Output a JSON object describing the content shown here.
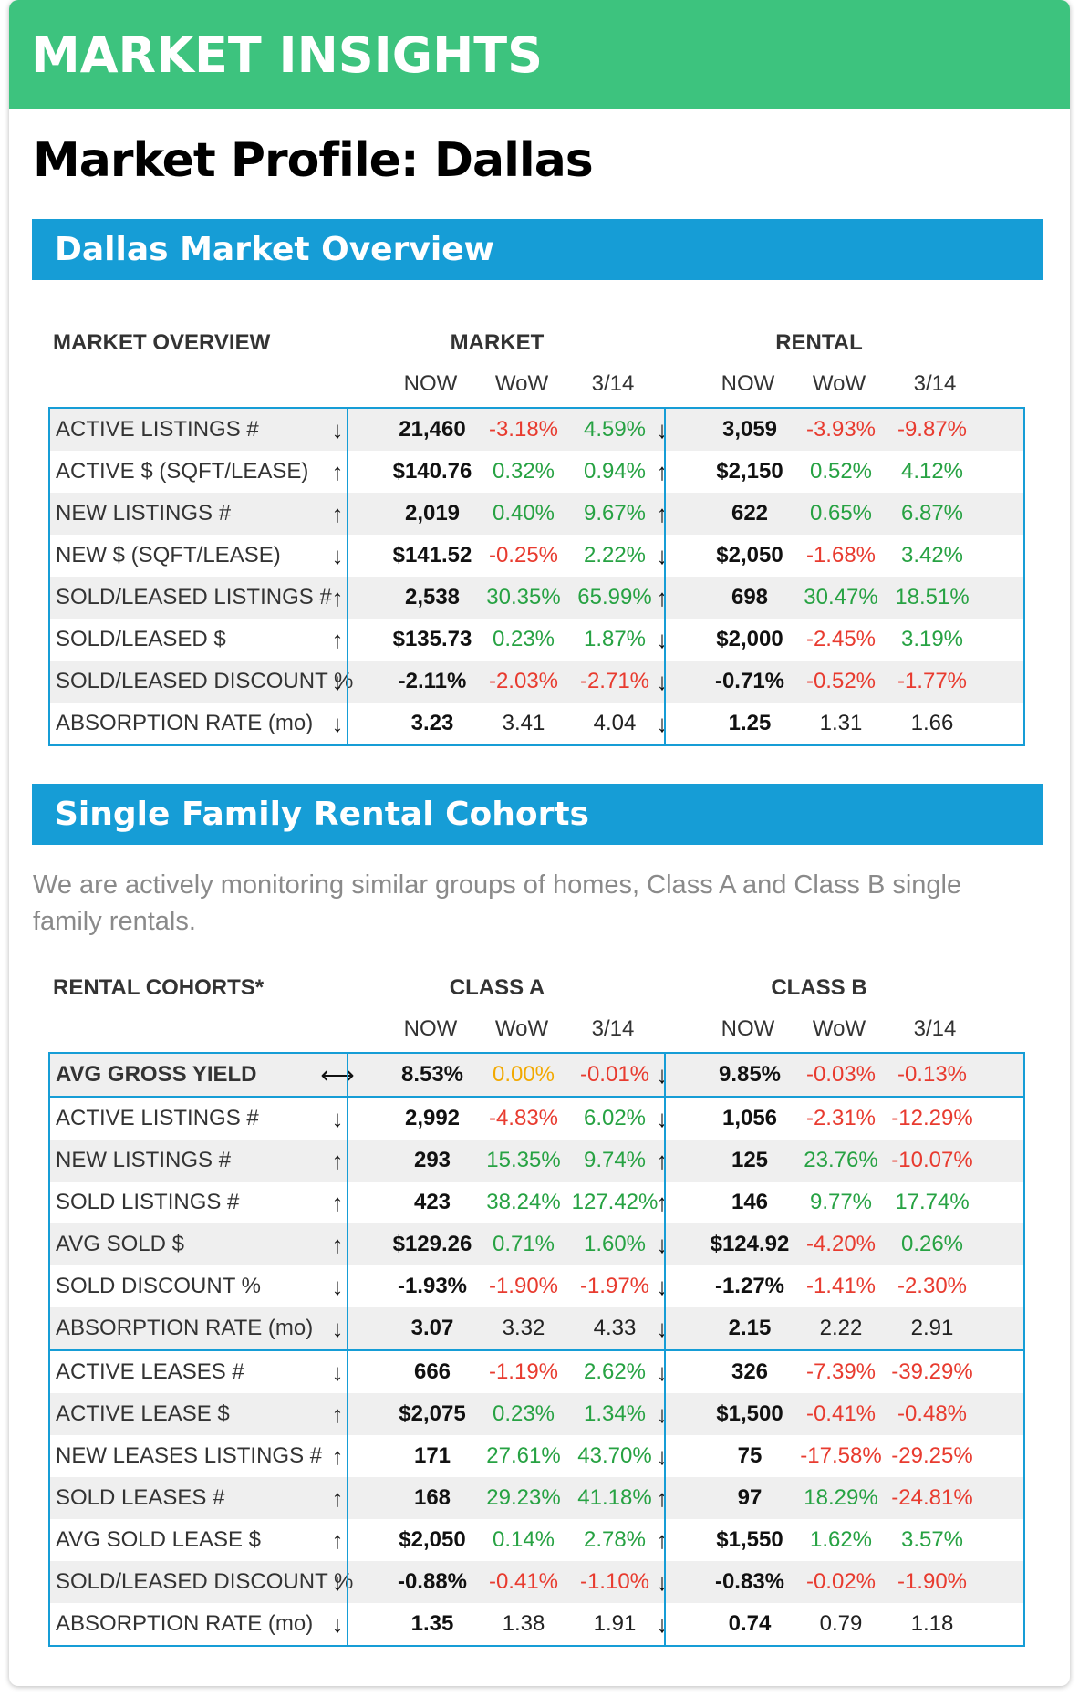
{
  "banner_title": "MARKET INSIGHTS",
  "page_title": "Market Profile: Dallas",
  "section1_title": "Dallas Market Overview",
  "section2_title": "Single Family Rental Cohorts",
  "description": "We are actively monitoring similar groups of homes, Class A and Class B single family rentals.",
  "colors": {
    "banner": "#3dc37e",
    "section": "#169dd6",
    "positive": "#27a243",
    "negative": "#e83b2f",
    "flat": "#f2a900"
  },
  "overview": {
    "header": "MARKET OVERVIEW",
    "group1": "MARKET",
    "group2": "RENTAL",
    "subheaders": [
      "NOW",
      "WoW",
      "3/14"
    ],
    "rows": [
      {
        "label": "ACTIVE LISTINGS #",
        "a": {
          "dir": "↓",
          "now": "21,460",
          "wow": "-3.18%",
          "wow_c": "neg",
          "d": "4.59%",
          "d_c": "pos"
        },
        "b": {
          "dir": "↓",
          "now": "3,059",
          "wow": "-3.93%",
          "wow_c": "neg",
          "d": "-9.87%",
          "d_c": "neg"
        }
      },
      {
        "label": "ACTIVE $ (SQFT/LEASE)",
        "a": {
          "dir": "↑",
          "now": "$140.76",
          "wow": "0.32%",
          "wow_c": "pos",
          "d": "0.94%",
          "d_c": "pos"
        },
        "b": {
          "dir": "↑",
          "now": "$2,150",
          "wow": "0.52%",
          "wow_c": "pos",
          "d": "4.12%",
          "d_c": "pos"
        }
      },
      {
        "label": "NEW LISTINGS #",
        "a": {
          "dir": "↑",
          "now": "2,019",
          "wow": "0.40%",
          "wow_c": "pos",
          "d": "9.67%",
          "d_c": "pos"
        },
        "b": {
          "dir": "↑",
          "now": "622",
          "wow": "0.65%",
          "wow_c": "pos",
          "d": "6.87%",
          "d_c": "pos"
        }
      },
      {
        "label": "NEW $ (SQFT/LEASE)",
        "a": {
          "dir": "↓",
          "now": "$141.52",
          "wow": "-0.25%",
          "wow_c": "neg",
          "d": "2.22%",
          "d_c": "pos"
        },
        "b": {
          "dir": "↓",
          "now": "$2,050",
          "wow": "-1.68%",
          "wow_c": "neg",
          "d": "3.42%",
          "d_c": "pos"
        }
      },
      {
        "label": "SOLD/LEASED LISTINGS #",
        "a": {
          "dir": "↑",
          "now": "2,538",
          "wow": "30.35%",
          "wow_c": "pos",
          "d": "65.99%",
          "d_c": "pos"
        },
        "b": {
          "dir": "↑",
          "now": "698",
          "wow": "30.47%",
          "wow_c": "pos",
          "d": "18.51%",
          "d_c": "pos"
        }
      },
      {
        "label": "SOLD/LEASED $",
        "a": {
          "dir": "↑",
          "now": "$135.73",
          "wow": "0.23%",
          "wow_c": "pos",
          "d": "1.87%",
          "d_c": "pos"
        },
        "b": {
          "dir": "↓",
          "now": "$2,000",
          "wow": "-2.45%",
          "wow_c": "neg",
          "d": "3.19%",
          "d_c": "pos"
        }
      },
      {
        "label": "SOLD/LEASED DISCOUNT %",
        "a": {
          "dir": "↓",
          "now": "-2.11%",
          "wow": "-2.03%",
          "wow_c": "neg",
          "d": "-2.71%",
          "d_c": "neg"
        },
        "b": {
          "dir": "↓",
          "now": "-0.71%",
          "wow": "-0.52%",
          "wow_c": "neg",
          "d": "-1.77%",
          "d_c": "neg"
        }
      },
      {
        "label": "ABSORPTION RATE (mo)",
        "a": {
          "dir": "↓",
          "now": "3.23",
          "wow": "3.41",
          "wow_c": "neu",
          "d": "4.04",
          "d_c": "neu"
        },
        "b": {
          "dir": "↓",
          "now": "1.25",
          "wow": "1.31",
          "wow_c": "neu",
          "d": "1.66",
          "d_c": "neu"
        }
      }
    ]
  },
  "cohorts": {
    "header": "RENTAL COHORTS*",
    "group1": "CLASS A",
    "group2": "CLASS B",
    "subheaders": [
      "NOW",
      "WoW",
      "3/14"
    ],
    "rows": [
      {
        "label": "AVG GROSS YIELD",
        "bold": true,
        "a": {
          "dir": "⟷",
          "now": "8.53%",
          "wow": "0.00%",
          "wow_c": "flat",
          "d": "-0.01%",
          "d_c": "neg"
        },
        "b": {
          "dir": "↓",
          "now": "9.85%",
          "wow": "-0.03%",
          "wow_c": "neg",
          "d": "-0.13%",
          "d_c": "neg"
        }
      },
      {
        "label": "ACTIVE LISTINGS #",
        "a": {
          "dir": "↓",
          "now": "2,992",
          "wow": "-4.83%",
          "wow_c": "neg",
          "d": "6.02%",
          "d_c": "pos"
        },
        "b": {
          "dir": "↓",
          "now": "1,056",
          "wow": "-2.31%",
          "wow_c": "neg",
          "d": "-12.29%",
          "d_c": "neg"
        }
      },
      {
        "label": "NEW LISTINGS #",
        "a": {
          "dir": "↑",
          "now": "293",
          "wow": "15.35%",
          "wow_c": "pos",
          "d": "9.74%",
          "d_c": "pos"
        },
        "b": {
          "dir": "↑",
          "now": "125",
          "wow": "23.76%",
          "wow_c": "pos",
          "d": "-10.07%",
          "d_c": "neg"
        }
      },
      {
        "label": "SOLD LISTINGS #",
        "a": {
          "dir": "↑",
          "now": "423",
          "wow": "38.24%",
          "wow_c": "pos",
          "d": "127.42%",
          "d_c": "pos"
        },
        "b": {
          "dir": "↑",
          "now": "146",
          "wow": "9.77%",
          "wow_c": "pos",
          "d": "17.74%",
          "d_c": "pos"
        }
      },
      {
        "label": "AVG SOLD $",
        "a": {
          "dir": "↑",
          "now": "$129.26",
          "wow": "0.71%",
          "wow_c": "pos",
          "d": "1.60%",
          "d_c": "pos"
        },
        "b": {
          "dir": "↓",
          "now": "$124.92",
          "wow": "-4.20%",
          "wow_c": "neg",
          "d": "0.26%",
          "d_c": "pos"
        }
      },
      {
        "label": "SOLD DISCOUNT %",
        "a": {
          "dir": "↓",
          "now": "-1.93%",
          "wow": "-1.90%",
          "wow_c": "neg",
          "d": "-1.97%",
          "d_c": "neg"
        },
        "b": {
          "dir": "↓",
          "now": "-1.27%",
          "wow": "-1.41%",
          "wow_c": "neg",
          "d": "-2.30%",
          "d_c": "neg"
        }
      },
      {
        "label": "ABSORPTION RATE (mo)",
        "a": {
          "dir": "↓",
          "now": "3.07",
          "wow": "3.32",
          "wow_c": "neu",
          "d": "4.33",
          "d_c": "neu"
        },
        "b": {
          "dir": "↓",
          "now": "2.15",
          "wow": "2.22",
          "wow_c": "neu",
          "d": "2.91",
          "d_c": "neu"
        }
      },
      {
        "label": "ACTIVE LEASES #",
        "split": true,
        "a": {
          "dir": "↓",
          "now": "666",
          "wow": "-1.19%",
          "wow_c": "neg",
          "d": "2.62%",
          "d_c": "pos"
        },
        "b": {
          "dir": "↓",
          "now": "326",
          "wow": "-7.39%",
          "wow_c": "neg",
          "d": "-39.29%",
          "d_c": "neg"
        }
      },
      {
        "label": "ACTIVE LEASE $",
        "a": {
          "dir": "↑",
          "now": "$2,075",
          "wow": "0.23%",
          "wow_c": "pos",
          "d": "1.34%",
          "d_c": "pos"
        },
        "b": {
          "dir": "↓",
          "now": "$1,500",
          "wow": "-0.41%",
          "wow_c": "neg",
          "d": "-0.48%",
          "d_c": "neg"
        }
      },
      {
        "label": "NEW LEASES LISTINGS #",
        "a": {
          "dir": "↑",
          "now": "171",
          "wow": "27.61%",
          "wow_c": "pos",
          "d": "43.70%",
          "d_c": "pos"
        },
        "b": {
          "dir": "↓",
          "now": "75",
          "wow": "-17.58%",
          "wow_c": "neg",
          "d": "-29.25%",
          "d_c": "neg"
        }
      },
      {
        "label": "SOLD LEASES #",
        "a": {
          "dir": "↑",
          "now": "168",
          "wow": "29.23%",
          "wow_c": "pos",
          "d": "41.18%",
          "d_c": "pos"
        },
        "b": {
          "dir": "↑",
          "now": "97",
          "wow": "18.29%",
          "wow_c": "pos",
          "d": "-24.81%",
          "d_c": "neg"
        }
      },
      {
        "label": "AVG SOLD LEASE $",
        "a": {
          "dir": "↑",
          "now": "$2,050",
          "wow": "0.14%",
          "wow_c": "pos",
          "d": "2.78%",
          "d_c": "pos"
        },
        "b": {
          "dir": "↑",
          "now": "$1,550",
          "wow": "1.62%",
          "wow_c": "pos",
          "d": "3.57%",
          "d_c": "pos"
        }
      },
      {
        "label": "SOLD/LEASED DISCOUNT %",
        "a": {
          "dir": "↓",
          "now": "-0.88%",
          "wow": "-0.41%",
          "wow_c": "neg",
          "d": "-1.10%",
          "d_c": "neg"
        },
        "b": {
          "dir": "↓",
          "now": "-0.83%",
          "wow": "-0.02%",
          "wow_c": "neg",
          "d": "-1.90%",
          "d_c": "neg"
        }
      },
      {
        "label": "ABSORPTION RATE (mo)",
        "a": {
          "dir": "↓",
          "now": "1.35",
          "wow": "1.38",
          "wow_c": "neu",
          "d": "1.91",
          "d_c": "neu"
        },
        "b": {
          "dir": "↓",
          "now": "0.74",
          "wow": "0.79",
          "wow_c": "neu",
          "d": "1.18",
          "d_c": "neu"
        }
      }
    ]
  }
}
